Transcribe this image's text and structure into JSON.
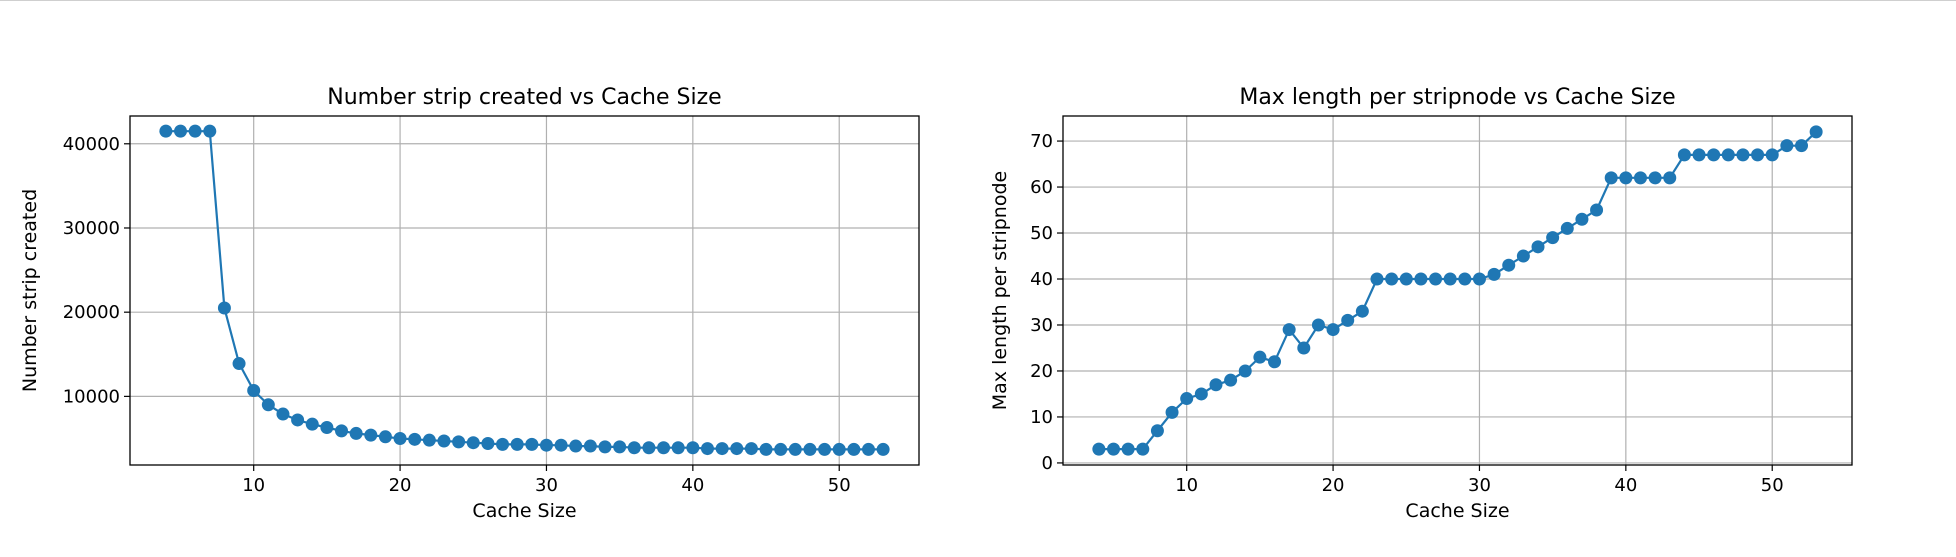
{
  "chart_data": [
    {
      "type": "line",
      "title": "Number strip created vs Cache Size",
      "xlabel": "Cache Size",
      "ylabel": "Number strip created",
      "xlim": [
        1.55,
        55.45
      ],
      "ylim": [
        1850,
        43300
      ],
      "xticks": [
        "10",
        "20",
        "30",
        "40",
        "50"
      ],
      "yticks": [
        "10000",
        "20000",
        "30000",
        "40000"
      ],
      "grid": true,
      "marker": "circle",
      "color": "#1f77b4",
      "x": [
        4,
        5,
        6,
        7,
        8,
        9,
        10,
        11,
        12,
        13,
        14,
        15,
        16,
        17,
        18,
        19,
        20,
        21,
        22,
        23,
        24,
        25,
        26,
        27,
        28,
        29,
        30,
        31,
        32,
        33,
        34,
        35,
        36,
        37,
        38,
        39,
        40,
        41,
        42,
        43,
        44,
        45,
        46,
        47,
        48,
        49,
        50,
        51,
        52,
        53
      ],
      "y": [
        41500,
        41500,
        41500,
        41500,
        20500,
        13900,
        10700,
        9000,
        7900,
        7200,
        6700,
        6300,
        5900,
        5600,
        5400,
        5200,
        5000,
        4900,
        4800,
        4700,
        4600,
        4500,
        4400,
        4300,
        4300,
        4300,
        4200,
        4200,
        4100,
        4100,
        4000,
        4000,
        3900,
        3900,
        3900,
        3900,
        3900,
        3800,
        3800,
        3800,
        3800,
        3700,
        3700,
        3700,
        3700,
        3700,
        3700,
        3700,
        3700,
        3700
      ]
    },
    {
      "type": "line",
      "title": "Max length per stripnode vs Cache Size",
      "xlabel": "Cache Size",
      "ylabel": "Max length per stripnode",
      "xlim": [
        1.55,
        55.45
      ],
      "ylim": [
        -0.45,
        75.45
      ],
      "xticks": [
        "10",
        "20",
        "30",
        "40",
        "50"
      ],
      "yticks": [
        "0",
        "10",
        "20",
        "30",
        "40",
        "50",
        "60",
        "70"
      ],
      "grid": true,
      "marker": "circle",
      "color": "#1f77b4",
      "x": [
        4,
        5,
        6,
        7,
        8,
        9,
        10,
        11,
        12,
        13,
        14,
        15,
        16,
        17,
        18,
        19,
        20,
        21,
        22,
        23,
        24,
        25,
        26,
        27,
        28,
        29,
        30,
        31,
        32,
        33,
        34,
        35,
        36,
        37,
        38,
        39,
        40,
        41,
        42,
        43,
        44,
        45,
        46,
        47,
        48,
        49,
        50,
        51,
        52,
        53
      ],
      "y": [
        3,
        3,
        3,
        3,
        7,
        11,
        14,
        15,
        17,
        18,
        20,
        23,
        22,
        29,
        25,
        30,
        29,
        31,
        33,
        40,
        40,
        40,
        40,
        40,
        40,
        40,
        40,
        41,
        43,
        45,
        47,
        49,
        51,
        53,
        55,
        62,
        62,
        62,
        62,
        62,
        67,
        67,
        67,
        67,
        67,
        67,
        67,
        69,
        69,
        72
      ]
    }
  ]
}
